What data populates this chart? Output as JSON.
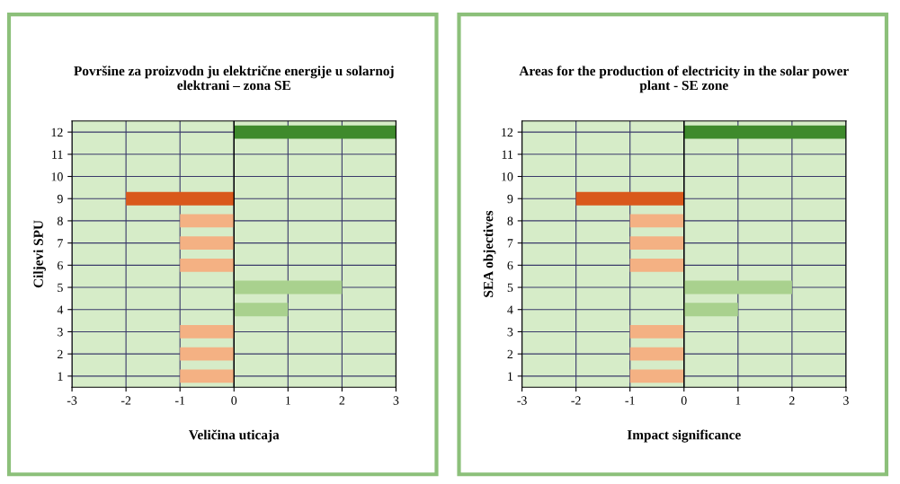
{
  "chart_data": [
    {
      "type": "bar",
      "orientation": "horizontal",
      "title": "Površine za proizvodn ju električne energije u solarnoj\nelektrani – zona SE",
      "xlabel": "Veličina uticaja",
      "ylabel": "Ciljevi SPU",
      "categories": [
        "12",
        "11",
        "10",
        "9",
        "8",
        "7",
        "6",
        "5",
        "4",
        "3",
        "2",
        "1"
      ],
      "values": [
        3,
        0,
        0,
        -2,
        -1,
        -1,
        -1,
        2,
        1,
        -1,
        -1,
        -1
      ],
      "colors": [
        "#3e8a2c",
        "#f4b183",
        "#f4b183",
        "#d9591c",
        "#f4b183",
        "#f4b183",
        "#f4b183",
        "#a9d18e",
        "#a9d18e",
        "#f4b183",
        "#f4b183",
        "#f4b183"
      ],
      "xlim": [
        -3,
        3
      ],
      "xticks": [
        -3,
        -2,
        -1,
        0,
        1,
        2,
        3
      ],
      "grid": true
    },
    {
      "type": "bar",
      "orientation": "horizontal",
      "title": "Areas for the production of electricity in the solar power\nplant - SE zone",
      "xlabel": "Impact significance",
      "ylabel": "SEA objectives",
      "categories": [
        "12",
        "11",
        "10",
        "9",
        "8",
        "7",
        "6",
        "5",
        "4",
        "3",
        "2",
        "1"
      ],
      "values": [
        3,
        0,
        0,
        -2,
        -1,
        -1,
        -1,
        2,
        1,
        -1,
        -1,
        -1
      ],
      "colors": [
        "#3e8a2c",
        "#f4b183",
        "#f4b183",
        "#d9591c",
        "#f4b183",
        "#f4b183",
        "#f4b183",
        "#a9d18e",
        "#a9d18e",
        "#f4b183",
        "#f4b183",
        "#f4b183"
      ],
      "xlim": [
        -3,
        3
      ],
      "xticks": [
        -3,
        -2,
        -1,
        0,
        1,
        2,
        3
      ],
      "grid": true
    }
  ]
}
